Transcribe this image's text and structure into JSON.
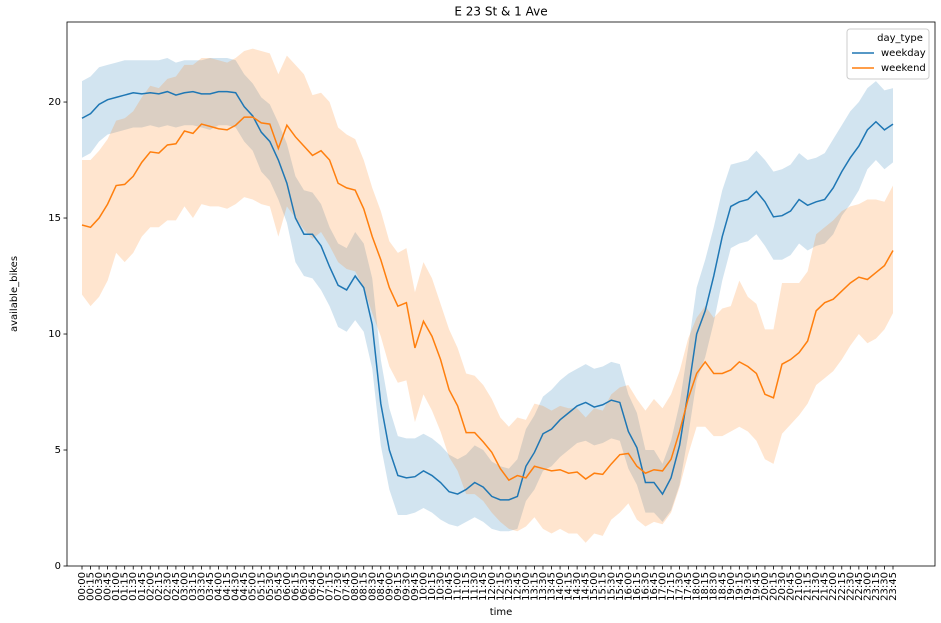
{
  "chart_data": {
    "type": "line",
    "title": "E 23 St & 1 Ave",
    "x_label": "time",
    "y_label": "available_bikes",
    "legend_title": "day_type",
    "legend": "upper right",
    "categories": [
      "00:00",
      "00:15",
      "00:30",
      "00:45",
      "01:00",
      "01:15",
      "01:30",
      "01:45",
      "02:00",
      "02:15",
      "02:30",
      "02:45",
      "03:00",
      "03:15",
      "03:30",
      "03:45",
      "04:00",
      "04:15",
      "04:30",
      "04:45",
      "05:00",
      "05:15",
      "05:30",
      "05:45",
      "06:00",
      "06:15",
      "06:30",
      "06:45",
      "07:00",
      "07:15",
      "07:30",
      "07:45",
      "08:00",
      "08:15",
      "08:30",
      "08:45",
      "09:00",
      "09:15",
      "09:30",
      "09:45",
      "10:00",
      "10:15",
      "10:30",
      "10:45",
      "11:00",
      "11:15",
      "11:30",
      "11:45",
      "12:00",
      "12:15",
      "12:30",
      "12:45",
      "13:00",
      "13:15",
      "13:30",
      "13:45",
      "14:00",
      "14:15",
      "14:30",
      "14:45",
      "15:00",
      "15:15",
      "15:30",
      "15:45",
      "16:00",
      "16:15",
      "16:30",
      "16:45",
      "17:00",
      "17:15",
      "17:30",
      "17:45",
      "18:00",
      "18:15",
      "18:30",
      "18:45",
      "19:00",
      "19:15",
      "19:30",
      "19:45",
      "20:00",
      "20:15",
      "20:30",
      "20:45",
      "21:00",
      "21:15",
      "21:30",
      "21:45",
      "22:00",
      "22:15",
      "22:30",
      "22:45",
      "23:00",
      "23:15",
      "23:30",
      "23:45"
    ],
    "ylim": [
      0,
      23.45
    ],
    "yticks": [
      0,
      5,
      10,
      15,
      20
    ],
    "series": [
      {
        "name": "weekday",
        "color": "#1f77b4",
        "values": [
          19.3,
          19.5,
          19.9,
          20.1,
          20.2,
          20.3,
          20.4,
          20.35,
          20.4,
          20.35,
          20.45,
          20.3,
          20.4,
          20.45,
          20.35,
          20.35,
          20.45,
          20.45,
          20.4,
          19.8,
          19.4,
          18.7,
          18.3,
          17.5,
          16.5,
          15.0,
          14.3,
          14.3,
          13.8,
          12.9,
          12.1,
          11.9,
          12.5,
          12.0,
          10.4,
          7.0,
          5.0,
          3.9,
          3.8,
          3.85,
          4.1,
          3.9,
          3.6,
          3.2,
          3.1,
          3.3,
          3.6,
          3.4,
          3.0,
          2.85,
          2.85,
          3.0,
          4.3,
          4.9,
          5.7,
          5.9,
          6.3,
          6.6,
          6.9,
          7.05,
          6.85,
          6.95,
          7.15,
          7.05,
          5.8,
          5.1,
          3.6,
          3.6,
          3.1,
          3.8,
          5.2,
          7.5,
          10.0,
          11.0,
          12.5,
          14.2,
          15.5,
          15.7,
          15.8,
          16.15,
          15.7,
          15.05,
          15.1,
          15.3,
          15.8,
          15.55,
          15.7,
          15.8,
          16.3,
          17.0,
          17.6,
          18.1,
          18.8,
          19.15,
          18.8,
          19.05
        ],
        "upper": [
          20.9,
          21.1,
          21.5,
          21.6,
          21.7,
          21.8,
          21.8,
          21.8,
          21.8,
          21.8,
          21.9,
          21.7,
          21.8,
          21.8,
          21.8,
          21.9,
          21.9,
          21.9,
          21.8,
          21.2,
          20.8,
          20.2,
          19.9,
          19.1,
          18.2,
          16.8,
          16.2,
          16.1,
          15.6,
          14.6,
          13.9,
          13.7,
          14.4,
          13.9,
          12.4,
          8.9,
          6.8,
          5.6,
          5.5,
          5.5,
          5.7,
          5.5,
          5.2,
          4.8,
          4.6,
          4.8,
          5.2,
          5.0,
          4.5,
          4.3,
          4.2,
          4.6,
          5.9,
          6.5,
          7.3,
          7.6,
          8.0,
          8.3,
          8.5,
          8.7,
          8.5,
          8.6,
          8.8,
          8.7,
          7.4,
          6.6,
          5.0,
          5.0,
          4.4,
          5.4,
          7.0,
          9.4,
          12.0,
          13.2,
          14.6,
          16.2,
          17.3,
          17.4,
          17.5,
          17.9,
          17.5,
          17.0,
          17.1,
          17.3,
          17.8,
          17.5,
          17.6,
          17.8,
          18.4,
          19.0,
          19.6,
          20.0,
          20.6,
          20.9,
          20.5,
          20.6
        ],
        "lower": [
          17.6,
          17.8,
          18.3,
          18.6,
          18.7,
          18.8,
          18.9,
          18.9,
          19.0,
          18.9,
          19.0,
          18.9,
          19.0,
          19.0,
          18.9,
          18.8,
          19.0,
          19.0,
          18.9,
          18.3,
          17.9,
          17.0,
          16.6,
          15.8,
          14.8,
          13.1,
          12.5,
          12.4,
          11.9,
          11.2,
          10.3,
          10.1,
          10.6,
          10.1,
          8.5,
          5.2,
          3.3,
          2.2,
          2.2,
          2.3,
          2.5,
          2.3,
          2.0,
          1.8,
          1.7,
          1.9,
          2.1,
          1.9,
          1.6,
          1.5,
          1.5,
          1.6,
          2.8,
          3.3,
          4.1,
          4.3,
          4.7,
          5.0,
          5.3,
          5.4,
          5.2,
          5.3,
          5.5,
          5.4,
          4.2,
          3.5,
          2.3,
          2.3,
          1.9,
          2.4,
          3.5,
          5.6,
          8.0,
          9.0,
          10.5,
          12.3,
          13.7,
          13.9,
          14.0,
          14.3,
          13.8,
          13.2,
          13.2,
          13.4,
          13.9,
          13.6,
          13.8,
          13.9,
          14.3,
          15.1,
          15.6,
          16.2,
          17.1,
          17.5,
          17.1,
          17.4
        ]
      },
      {
        "name": "weekend",
        "color": "#ff7f0e",
        "values": [
          14.7,
          14.6,
          15.0,
          15.6,
          16.4,
          16.45,
          16.8,
          17.4,
          17.85,
          17.8,
          18.15,
          18.2,
          18.75,
          18.65,
          19.05,
          18.95,
          18.85,
          18.8,
          19.0,
          19.35,
          19.35,
          19.1,
          19.05,
          18.0,
          19.0,
          18.5,
          18.1,
          17.7,
          17.9,
          17.5,
          16.5,
          16.3,
          16.2,
          15.4,
          14.2,
          13.2,
          12.0,
          11.2,
          11.35,
          9.4,
          10.55,
          9.9,
          8.9,
          7.6,
          6.9,
          5.75,
          5.75,
          5.35,
          4.9,
          4.2,
          3.7,
          3.9,
          3.8,
          4.3,
          4.2,
          4.1,
          4.15,
          4.0,
          4.05,
          3.75,
          4.0,
          3.95,
          4.4,
          4.8,
          4.85,
          4.3,
          4.0,
          4.15,
          4.1,
          4.6,
          5.8,
          7.2,
          8.3,
          8.8,
          8.3,
          8.3,
          8.45,
          8.8,
          8.6,
          8.3,
          7.4,
          7.25,
          8.7,
          8.9,
          9.2,
          9.7,
          11.0,
          11.35,
          11.5,
          11.85,
          12.2,
          12.45,
          12.35,
          12.65,
          12.95,
          13.6
        ],
        "upper": [
          17.5,
          17.5,
          17.9,
          18.4,
          19.2,
          19.3,
          19.6,
          20.2,
          20.7,
          20.6,
          21.0,
          21.1,
          21.6,
          21.6,
          21.9,
          21.9,
          21.8,
          21.7,
          21.9,
          22.2,
          22.3,
          22.2,
          22.1,
          21.2,
          22.0,
          21.6,
          21.2,
          20.3,
          20.4,
          20.0,
          18.9,
          18.6,
          18.4,
          17.5,
          16.3,
          15.3,
          14.0,
          13.5,
          13.7,
          11.8,
          13.1,
          12.4,
          11.3,
          10.2,
          9.4,
          8.3,
          8.2,
          7.8,
          7.2,
          6.4,
          6.0,
          6.4,
          6.3,
          7.0,
          6.9,
          6.7,
          6.9,
          6.8,
          6.8,
          6.4,
          6.8,
          6.7,
          7.4,
          7.7,
          7.8,
          7.2,
          6.7,
          7.2,
          6.8,
          7.4,
          8.4,
          9.8,
          10.7,
          11.2,
          10.7,
          11.1,
          11.2,
          12.3,
          11.6,
          11.3,
          10.2,
          10.2,
          12.2,
          12.2,
          12.2,
          12.7,
          14.3,
          14.6,
          14.9,
          15.3,
          15.5,
          15.6,
          15.8,
          15.8,
          15.7,
          16.4
        ],
        "lower": [
          11.7,
          11.2,
          11.6,
          12.3,
          13.5,
          13.1,
          13.5,
          14.2,
          14.6,
          14.6,
          14.9,
          14.9,
          15.5,
          15.0,
          15.6,
          15.5,
          15.5,
          15.4,
          15.6,
          15.9,
          15.8,
          15.6,
          15.5,
          14.2,
          15.5,
          15.0,
          14.5,
          14.1,
          14.4,
          13.8,
          13.1,
          12.8,
          12.7,
          12.0,
          10.9,
          9.9,
          8.6,
          7.9,
          8.0,
          6.2,
          7.4,
          6.7,
          5.8,
          4.7,
          4.1,
          3.1,
          3.1,
          2.8,
          2.3,
          1.9,
          1.6,
          1.5,
          1.7,
          2.1,
          1.6,
          1.4,
          1.6,
          1.4,
          1.4,
          1.0,
          1.4,
          1.3,
          2.0,
          2.3,
          2.7,
          2.0,
          1.7,
          1.9,
          1.8,
          2.3,
          3.4,
          4.8,
          6.0,
          6.0,
          5.6,
          5.6,
          5.8,
          6.0,
          5.8,
          5.4,
          4.6,
          4.4,
          5.7,
          6.1,
          6.5,
          7.0,
          7.8,
          8.1,
          8.4,
          8.9,
          9.5,
          10.0,
          9.6,
          9.8,
          10.2,
          10.9
        ]
      }
    ]
  }
}
